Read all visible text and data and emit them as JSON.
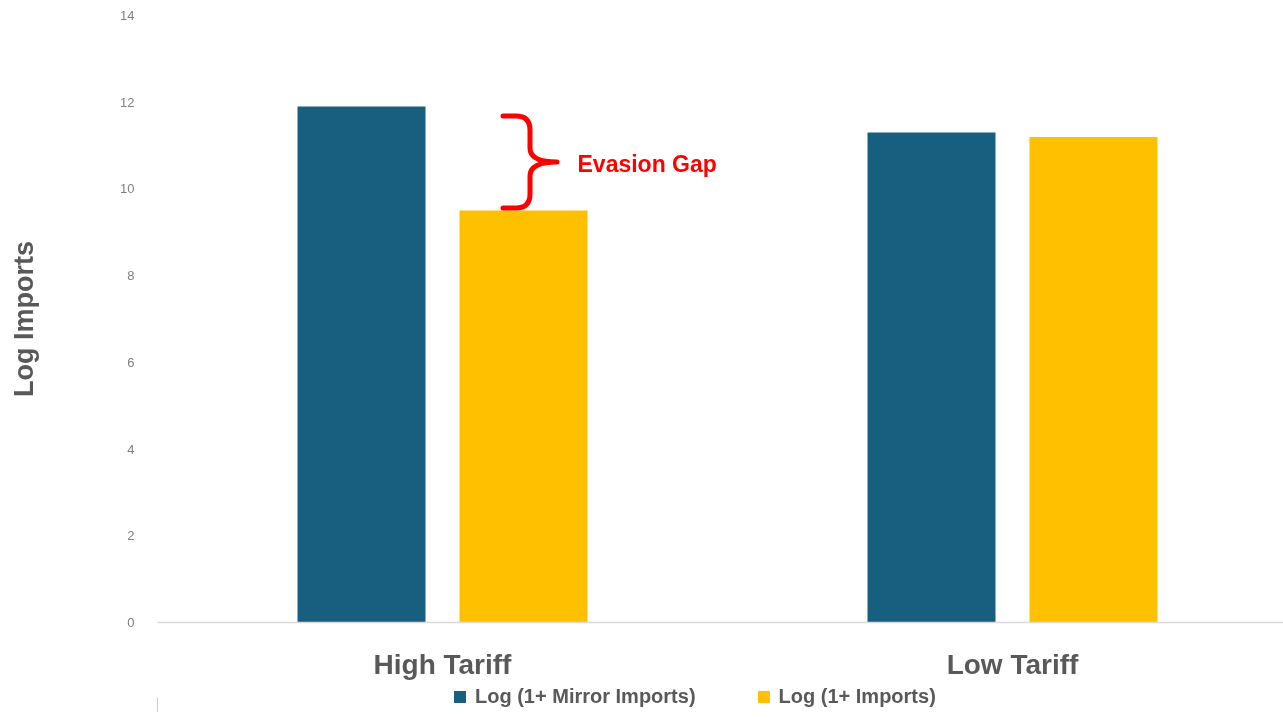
{
  "chart_data": {
    "type": "bar",
    "categories": [
      "High Tariff",
      "Low Tariff"
    ],
    "series": [
      {
        "name": "Log (1+ Mirror Imports)",
        "color": "#185f7f",
        "values": [
          11.9,
          11.3
        ]
      },
      {
        "name": "Log (1+ Imports)",
        "color": "#ffc000",
        "values": [
          9.5,
          11.2
        ]
      }
    ],
    "ylabel": "Log Imports",
    "ylim": [
      0,
      14
    ],
    "yticks": [
      0,
      2,
      4,
      6,
      8,
      10,
      12,
      14
    ],
    "legend": "bottom",
    "annotations": [
      "Evasion Gap"
    ]
  }
}
